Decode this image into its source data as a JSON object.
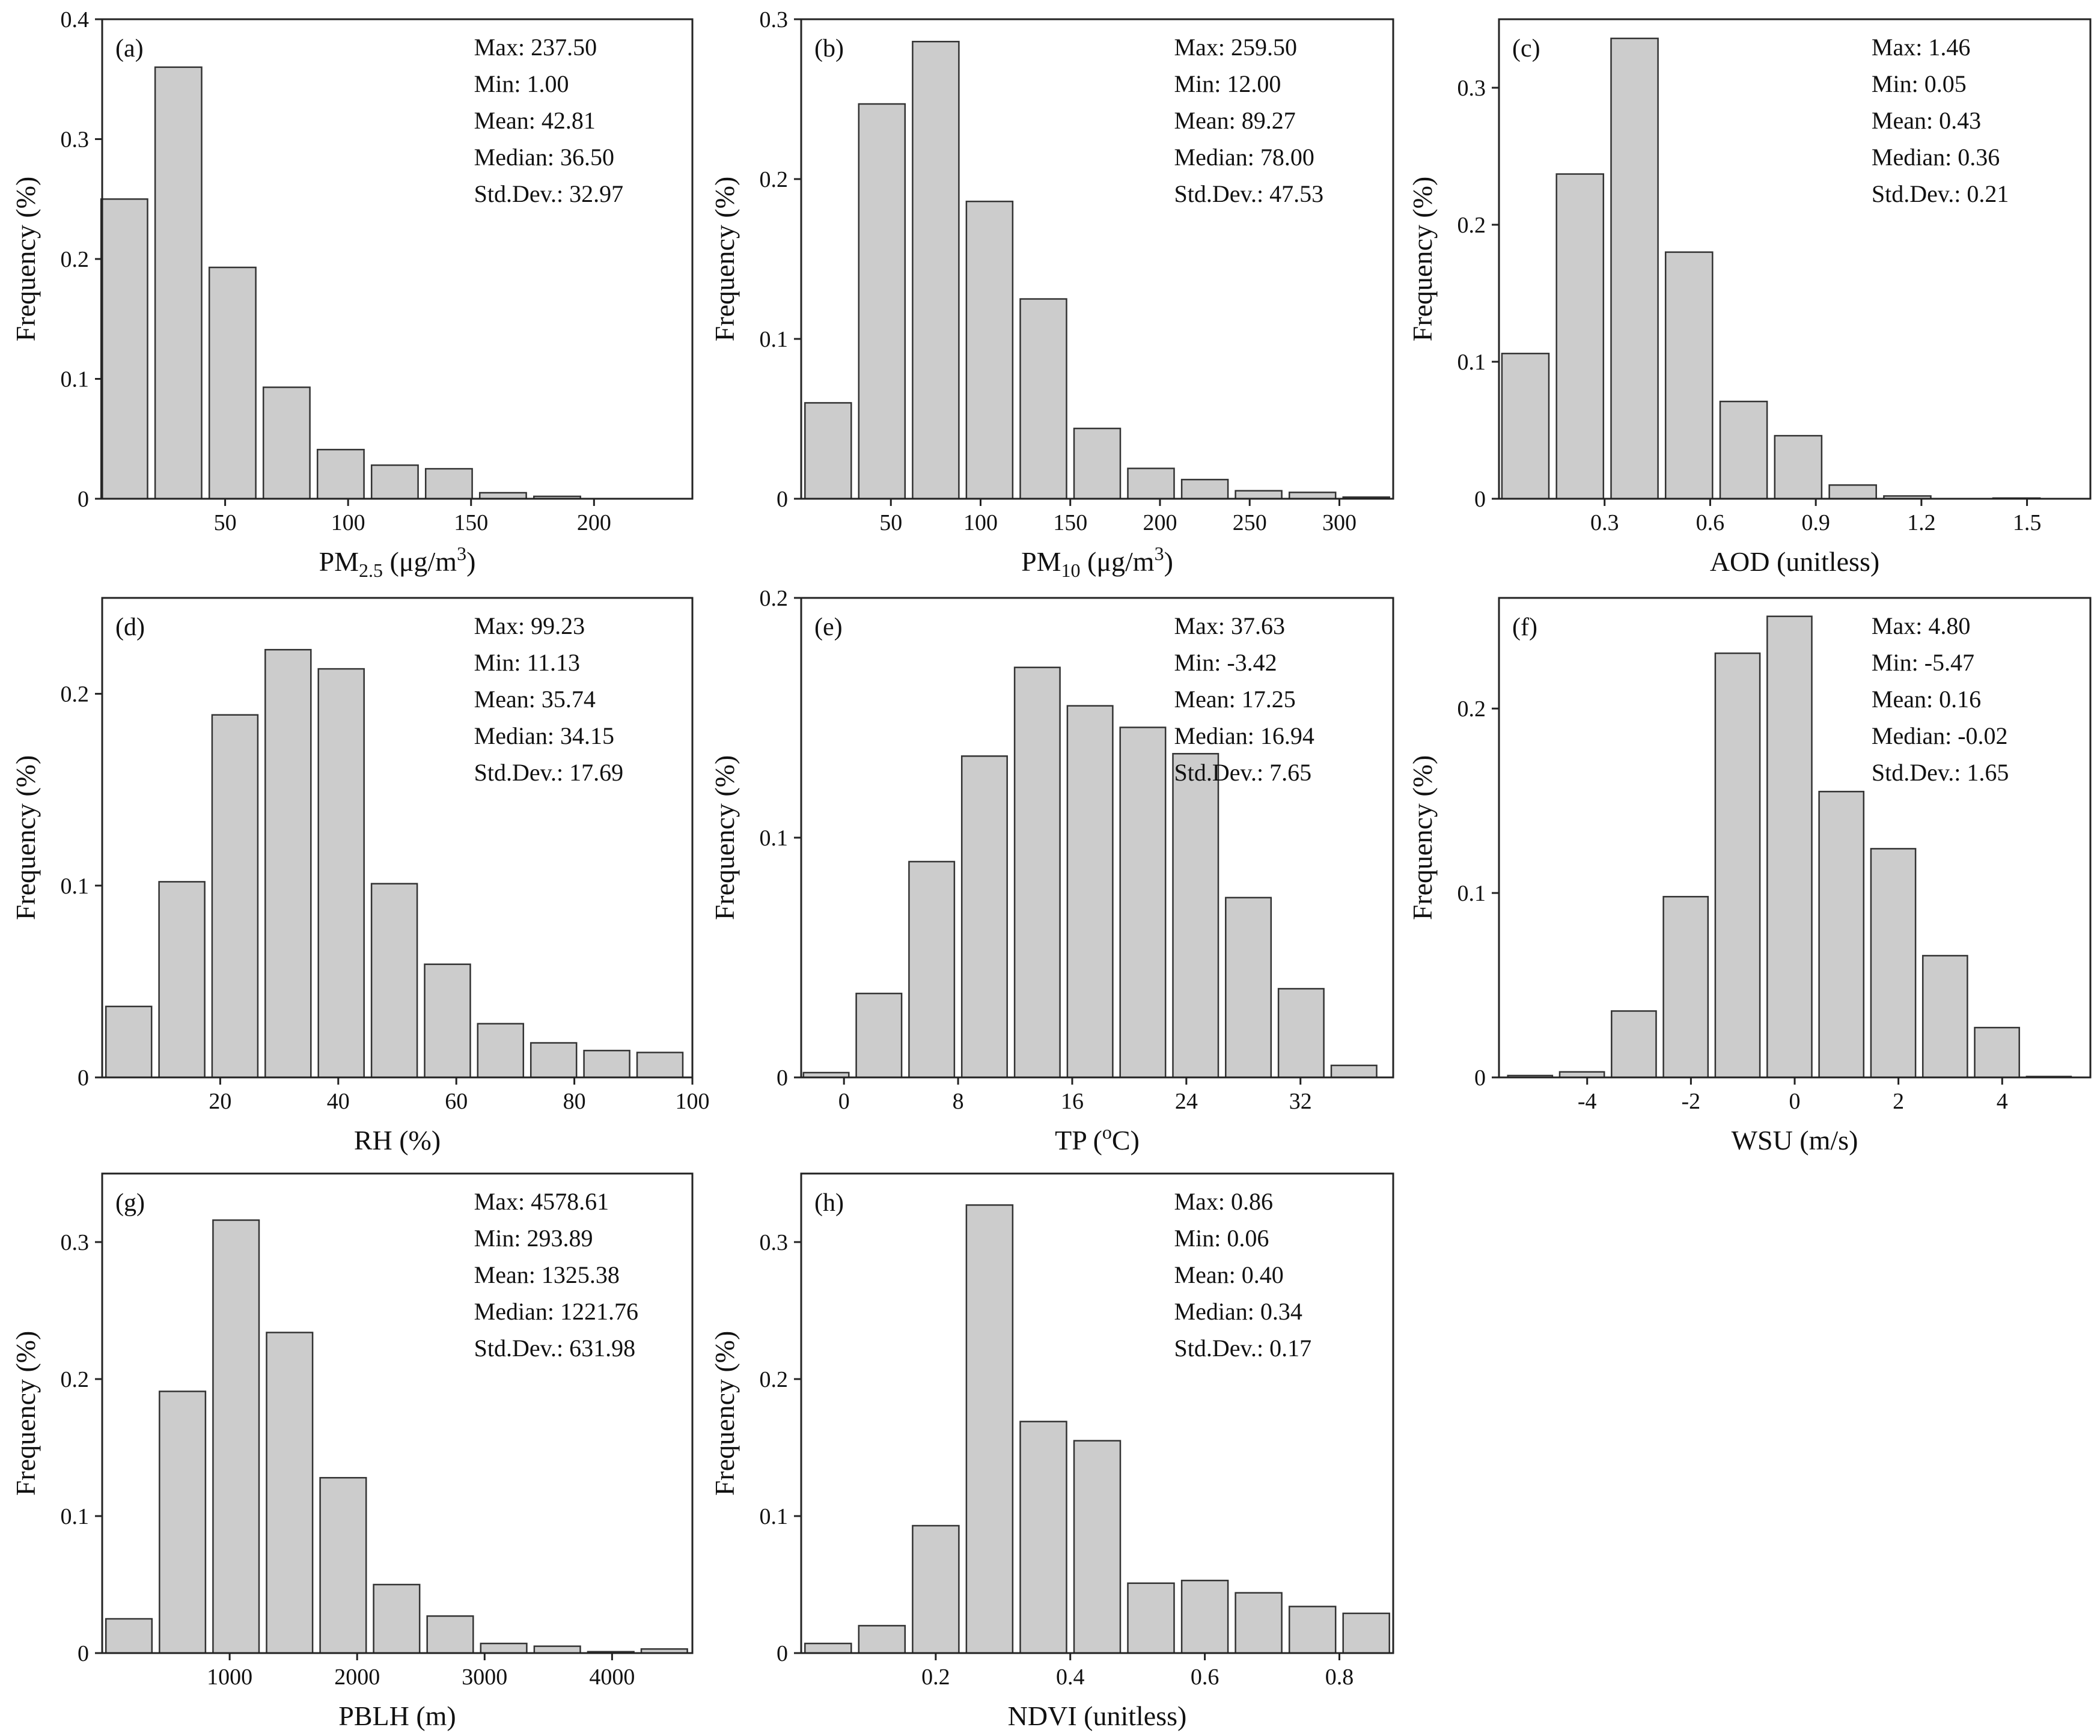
{
  "figure": {
    "description_free": true
  },
  "chart_data": [
    {
      "id": "a",
      "type": "bar",
      "panel_label": "(a)",
      "xlabel_main": "PM",
      "xlabel_sub": "2.5",
      "xlabel_units_pre": " (μg/m",
      "xlabel_units_sup": "3",
      "xlabel_units_post": ")",
      "ylabel": "Frequency (%)",
      "xlim": [
        0,
        240
      ],
      "ylim": [
        0,
        0.4
      ],
      "xticks": [
        50,
        100,
        150,
        200
      ],
      "yticks": [
        0,
        0.1,
        0.2,
        0.3,
        0.4
      ],
      "ytick_labels": [
        "0",
        "0.1",
        "0.2",
        "0.3",
        "0.4"
      ],
      "bin_width": 22,
      "bin_centers": [
        9,
        31,
        53,
        75,
        97,
        119,
        141,
        163,
        185,
        207
      ],
      "values": [
        0.25,
        0.36,
        0.193,
        0.093,
        0.041,
        0.028,
        0.025,
        0.005,
        0.002,
        0.0
      ],
      "stats": [
        "Max: 237.50",
        "Min: 1.00",
        "Mean: 42.81",
        "Median: 36.50",
        "Std.Dev.: 32.97"
      ]
    },
    {
      "id": "b",
      "type": "bar",
      "panel_label": "(b)",
      "xlabel_main": "PM",
      "xlabel_sub": "10",
      "xlabel_units_pre": " (μg/m",
      "xlabel_units_sup": "3",
      "xlabel_units_post": ")",
      "ylabel": "Frequency (%)",
      "xlim": [
        0,
        330
      ],
      "ylim": [
        0,
        0.3
      ],
      "xticks": [
        50,
        100,
        150,
        200,
        250,
        300
      ],
      "yticks": [
        0,
        0.1,
        0.2,
        0.3
      ],
      "ytick_labels": [
        "0",
        "0.1",
        "0.2",
        "0.3"
      ],
      "bin_width": 30,
      "bin_centers": [
        15,
        45,
        75,
        105,
        135,
        165,
        195,
        225,
        255,
        285,
        315
      ],
      "values": [
        0.06,
        0.247,
        0.286,
        0.186,
        0.125,
        0.044,
        0.019,
        0.012,
        0.005,
        0.004,
        0.001
      ],
      "stats": [
        "Max: 259.50",
        "Min: 12.00",
        "Mean: 89.27",
        "Median: 78.00",
        "Std.Dev.: 47.53"
      ]
    },
    {
      "id": "c",
      "type": "bar",
      "panel_label": "(c)",
      "xlabel_main": "AOD (unitless)",
      "xlabel_sub": "",
      "xlabel_units_pre": "",
      "xlabel_units_sup": "",
      "xlabel_units_post": "",
      "ylabel": "Frequency (%)",
      "xlim": [
        0,
        1.68
      ],
      "ylim": [
        0,
        0.35
      ],
      "xticks": [
        0.3,
        0.6,
        0.9,
        1.2,
        1.5
      ],
      "yticks": [
        0,
        0.1,
        0.2,
        0.3
      ],
      "ytick_labels": [
        "0",
        "0.1",
        "0.2",
        "0.3"
      ],
      "bin_width": 0.155,
      "bin_centers": [
        0.075,
        0.23,
        0.385,
        0.54,
        0.695,
        0.85,
        1.005,
        1.16,
        1.315,
        1.47,
        1.625
      ],
      "values": [
        0.106,
        0.237,
        0.336,
        0.18,
        0.071,
        0.046,
        0.01,
        0.002,
        0.0,
        0.0005,
        0.0
      ],
      "stats": [
        "Max: 1.46",
        "Min:  0.05",
        "Mean: 0.43",
        "Median: 0.36",
        "Std.Dev.: 0.21"
      ]
    },
    {
      "id": "d",
      "type": "bar",
      "panel_label": "(d)",
      "xlabel_main": "RH (%)",
      "xlabel_sub": "",
      "xlabel_units_pre": "",
      "xlabel_units_sup": "",
      "xlabel_units_post": "",
      "ylabel": "Frequency (%)",
      "xlim": [
        0,
        100
      ],
      "ylim": [
        0,
        0.25
      ],
      "xticks": [
        20,
        40,
        60,
        80,
        100
      ],
      "yticks": [
        0,
        0.1,
        0.2
      ],
      "ytick_labels": [
        "0",
        "0.1",
        "0.2"
      ],
      "bin_width": 9,
      "bin_centers": [
        4.5,
        13.5,
        22.5,
        31.5,
        40.5,
        49.5,
        58.5,
        67.5,
        76.5,
        85.5,
        94.5
      ],
      "values": [
        0.037,
        0.102,
        0.189,
        0.223,
        0.213,
        0.101,
        0.059,
        0.028,
        0.018,
        0.014,
        0.013
      ],
      "stats": [
        "Max: 99.23",
        "Min: 11.13",
        "Mean: 35.74",
        "Median: 34.15",
        "Std.Dev.: 17.69"
      ]
    },
    {
      "id": "e",
      "type": "bar",
      "panel_label": "(e)",
      "xlabel_main": "TP (",
      "xlabel_sub": "",
      "xlabel_units_pre": "",
      "xlabel_units_sup": "o",
      "xlabel_units_post": "C)",
      "ylabel": "Frequency (%)",
      "xlim": [
        -3,
        38.5
      ],
      "ylim": [
        0,
        0.2
      ],
      "xticks": [
        0,
        8,
        16,
        24,
        32
      ],
      "yticks": [
        0,
        0.1,
        0.2
      ],
      "ytick_labels": [
        "0",
        "0.1",
        "0.2"
      ],
      "bin_width": 3.7,
      "bin_centers": [
        -1.25,
        2.45,
        6.15,
        9.85,
        13.55,
        17.25,
        20.95,
        24.65,
        28.35,
        32.05,
        35.75
      ],
      "values": [
        0.002,
        0.035,
        0.09,
        0.134,
        0.171,
        0.155,
        0.146,
        0.135,
        0.075,
        0.037,
        0.005
      ],
      "stats": [
        "Max: 37.63",
        "Min: -3.42",
        "Mean: 17.25",
        "Median: 16.94",
        "Std.Dev.: 7.65"
      ]
    },
    {
      "id": "f",
      "type": "bar",
      "panel_label": "(f)",
      "xlabel_main": "WSU (m/s)",
      "xlabel_sub": "",
      "xlabel_units_pre": "",
      "xlabel_units_sup": "",
      "xlabel_units_post": "",
      "ylabel": "Frequency (%)",
      "xlim": [
        -5.7,
        5.7
      ],
      "ylim": [
        0,
        0.26
      ],
      "xticks": [
        -4,
        -2,
        0,
        2,
        4
      ],
      "yticks": [
        0,
        0.1,
        0.2
      ],
      "ytick_labels": [
        "0",
        "0.1",
        "0.2"
      ],
      "bin_width": 1.0,
      "bin_centers": [
        -5.1,
        -4.1,
        -3.1,
        -2.1,
        -1.1,
        -0.1,
        0.9,
        1.9,
        2.9,
        3.9,
        4.9
      ],
      "values": [
        0.001,
        0.003,
        0.036,
        0.098,
        0.23,
        0.25,
        0.155,
        0.124,
        0.066,
        0.027,
        0.0005
      ],
      "stats": [
        "Max: 4.80",
        "Min: -5.47",
        "Mean: 0.16",
        "Median: -0.02",
        "Std.Dev.: 1.65"
      ]
    },
    {
      "id": "g",
      "type": "bar",
      "panel_label": "(g)",
      "xlabel_main": "PBLH (m)",
      "xlabel_sub": "",
      "xlabel_units_pre": "",
      "xlabel_units_sup": "",
      "xlabel_units_post": "",
      "ylabel": "Frequency (%)",
      "xlim": [
        0,
        4630
      ],
      "ylim": [
        0,
        0.35
      ],
      "xticks": [
        1000,
        2000,
        3000,
        4000
      ],
      "yticks": [
        0,
        0.1,
        0.2,
        0.3
      ],
      "ytick_labels": [
        "0",
        "0.1",
        "0.2",
        "0.3"
      ],
      "bin_width": 420,
      "bin_centers": [
        210,
        630,
        1050,
        1470,
        1890,
        2310,
        2730,
        3150,
        3570,
        3990,
        4410
      ],
      "values": [
        0.025,
        0.191,
        0.316,
        0.234,
        0.128,
        0.05,
        0.027,
        0.007,
        0.005,
        0.001,
        0.003
      ],
      "stats": [
        "Max: 4578.61",
        "Min: 293.89",
        "Mean: 1325.38",
        "Median: 1221.76",
        "Std.Dev.: 631.98"
      ]
    },
    {
      "id": "h",
      "type": "bar",
      "panel_label": "(h)",
      "xlabel_main": "NDVI (unitless)",
      "xlabel_sub": "",
      "xlabel_units_pre": "",
      "xlabel_units_sup": "",
      "xlabel_units_post": "",
      "ylabel": "Frequency (%)",
      "xlim": [
        0,
        0.88
      ],
      "ylim": [
        0,
        0.35
      ],
      "xticks": [
        0.2,
        0.4,
        0.6,
        0.8
      ],
      "yticks": [
        0,
        0.1,
        0.2,
        0.3
      ],
      "ytick_labels": [
        "0",
        "0.1",
        "0.2",
        "0.3"
      ],
      "bin_width": 0.08,
      "bin_centers": [
        0.04,
        0.12,
        0.2,
        0.28,
        0.36,
        0.44,
        0.52,
        0.6,
        0.68,
        0.76,
        0.84
      ],
      "values": [
        0.007,
        0.02,
        0.093,
        0.327,
        0.169,
        0.155,
        0.051,
        0.053,
        0.044,
        0.034,
        0.029
      ],
      "stats": [
        "Max: 0.86",
        "Min: 0.06",
        "Mean: 0.40",
        "Median: 0.34",
        "Std.Dev.: 0.17"
      ]
    }
  ]
}
